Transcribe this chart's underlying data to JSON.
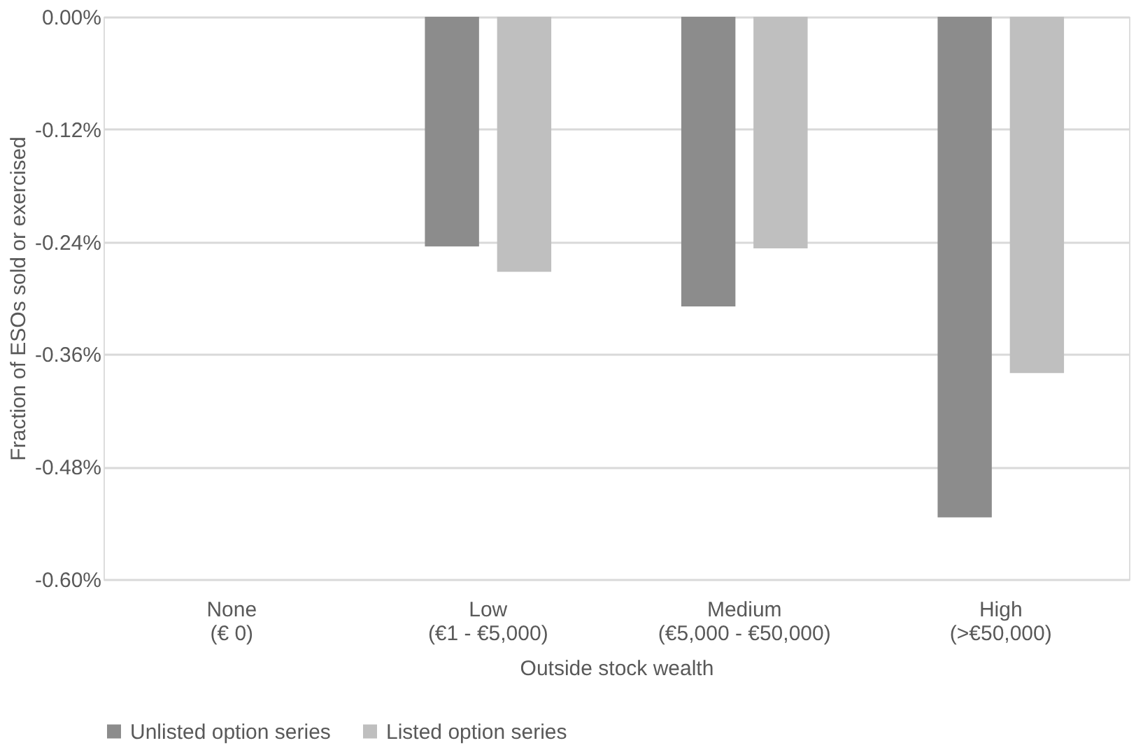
{
  "chart_data": {
    "type": "bar",
    "categories": [
      "None\n(€ 0)",
      "Low\n(€1 - €5,000)",
      "Medium\n(€5,000 - €50,000)",
      "High\n(>€50,000)"
    ],
    "series": [
      {
        "name": "Unlisted option series",
        "color": "#8c8c8c",
        "values": [
          null,
          -0.245,
          -0.309,
          -0.534
        ]
      },
      {
        "name": "Listed option series",
        "color": "#bfbfbf",
        "values": [
          null,
          -0.272,
          -0.247,
          -0.38
        ]
      }
    ],
    "xlabel": "Outside stock wealth",
    "ylabel": "Fraction of ESOs sold or exercised",
    "ylim": [
      -0.6,
      0
    ],
    "yticks": [
      {
        "value": 0,
        "label": "0.00%"
      },
      {
        "value": -0.12,
        "label": "-0.12%"
      },
      {
        "value": -0.24,
        "label": "-0.24%"
      },
      {
        "value": -0.36,
        "label": "-0.36%"
      },
      {
        "value": -0.48,
        "label": "-0.48%"
      },
      {
        "value": -0.6,
        "label": "-0.60%"
      }
    ],
    "grid": "y",
    "legend": "bottom"
  }
}
